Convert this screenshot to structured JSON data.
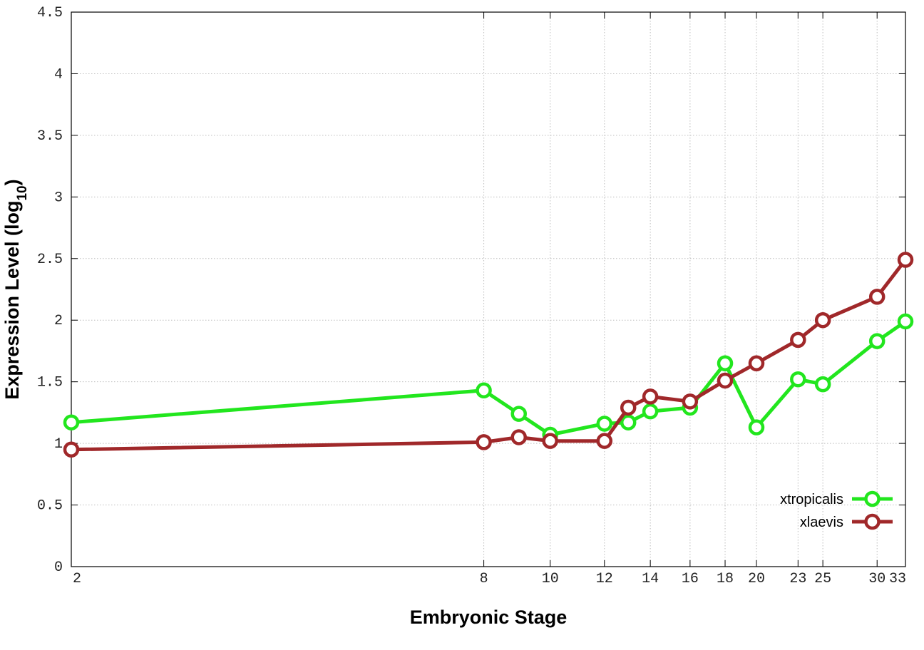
{
  "chart_data": {
    "type": "line",
    "title": "",
    "xlabel": "Embryonic Stage",
    "ylabel": "Expression Level (log",
    "ylabel_sub": "10",
    "ylabel_close": ")",
    "x_ticks": [
      2,
      8,
      10,
      12,
      14,
      16,
      18,
      20,
      23,
      25,
      30,
      33
    ],
    "x_tick_labels": [
      "2",
      "8",
      "10",
      "12",
      "14",
      "16",
      "18",
      "20",
      "23",
      "25",
      "30",
      "33"
    ],
    "x_scale": "log",
    "xlim": [
      2,
      33
    ],
    "y_ticks": [
      0,
      0.5,
      1,
      1.5,
      2,
      2.5,
      3,
      3.5,
      4,
      4.5
    ],
    "y_tick_labels": [
      "0",
      "0.5",
      "1",
      "1.5",
      "2",
      "2.5",
      "3",
      "3.5",
      "4",
      "4.5"
    ],
    "ylim": [
      0,
      4.5
    ],
    "grid": true,
    "legend_position": "bottom-right",
    "series": [
      {
        "name": "xtropicalis",
        "color": "#22e61e",
        "x": [
          2,
          8,
          9,
          10,
          12,
          13,
          14,
          16,
          18,
          20,
          23,
          25,
          30,
          33
        ],
        "values": [
          1.17,
          1.43,
          1.24,
          1.07,
          1.16,
          1.17,
          1.26,
          1.29,
          1.65,
          1.13,
          1.52,
          1.48,
          1.83,
          1.99
        ]
      },
      {
        "name": "xlaevis",
        "color": "#a0282a",
        "x": [
          2,
          8,
          9,
          10,
          12,
          13,
          14,
          16,
          18,
          20,
          23,
          25,
          30,
          33
        ],
        "values": [
          0.95,
          1.01,
          1.05,
          1.02,
          1.02,
          1.29,
          1.38,
          1.34,
          1.51,
          1.65,
          1.84,
          2.0,
          2.19,
          2.49
        ]
      }
    ]
  }
}
